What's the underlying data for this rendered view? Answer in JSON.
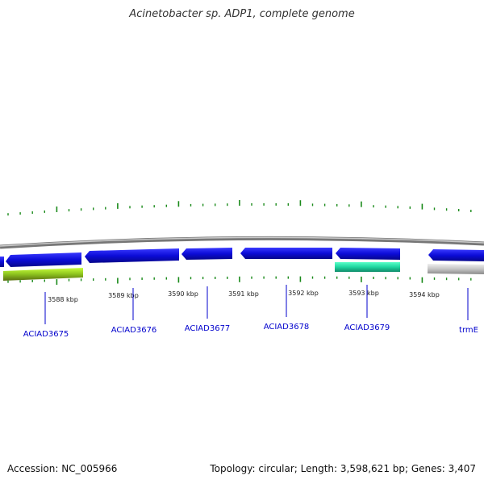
{
  "title": "Acinetobacter sp. ADP1, complete genome",
  "footer": {
    "accession": "Accession: NC_005966",
    "summary": "Topology: circular; Length: 3,598,621 bp; Genes: 3,407"
  },
  "colors": {
    "backbone": "#8a8a8a",
    "tick": "#1a8a1a",
    "gene_forward_blue": "#1010e0",
    "label": "#0000cc"
  },
  "kbp_labels": [
    "3588 kbp",
    "3589 kbp",
    "3590 kbp",
    "3591 kbp",
    "3592 kbp",
    "3593 kbp",
    "3594 kbp"
  ],
  "gene_labels": [
    "ACIAD3675",
    "ACIAD3676",
    "ACIAD3677",
    "ACIAD3678",
    "ACIAD3679",
    "trmE"
  ]
}
